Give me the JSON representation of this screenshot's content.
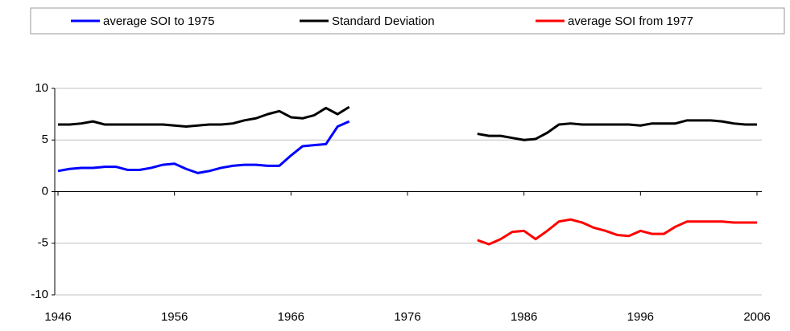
{
  "chart_data": {
    "type": "line",
    "x": [
      1946,
      1947,
      1948,
      1949,
      1950,
      1951,
      1952,
      1953,
      1954,
      1955,
      1956,
      1957,
      1958,
      1959,
      1960,
      1961,
      1962,
      1963,
      1964,
      1965,
      1966,
      1967,
      1968,
      1969,
      1970,
      1971,
      1972,
      1973,
      1974,
      1975,
      1976,
      1977,
      1978,
      1979,
      1980,
      1981,
      1982,
      1983,
      1984,
      1985,
      1986,
      1987,
      1988,
      1989,
      1990,
      1991,
      1992,
      1993,
      1994,
      1995,
      1996,
      1997,
      1998,
      1999,
      2000,
      2001,
      2002,
      2003,
      2004,
      2005,
      2006
    ],
    "series": [
      {
        "name": "average SOI to 1975",
        "color": "#0000ff",
        "values": [
          2.0,
          2.2,
          2.3,
          2.3,
          2.4,
          2.4,
          2.1,
          2.1,
          2.3,
          2.6,
          2.7,
          2.2,
          1.8,
          2.0,
          2.3,
          2.5,
          2.6,
          2.6,
          2.5,
          2.5,
          3.5,
          4.4,
          4.5,
          4.6,
          6.3,
          6.8,
          null,
          null,
          null,
          null,
          null,
          null,
          null,
          null,
          null,
          null,
          null,
          null,
          null,
          null,
          null,
          null,
          null,
          null,
          null,
          null,
          null,
          null,
          null,
          null,
          null,
          null,
          null,
          null,
          null,
          null,
          null,
          null,
          null,
          null,
          null
        ]
      },
      {
        "name": "Standard Deviation",
        "color": "#000000",
        "values": [
          6.5,
          6.5,
          6.6,
          6.8,
          6.5,
          6.5,
          6.5,
          6.5,
          6.5,
          6.5,
          6.4,
          6.3,
          6.4,
          6.5,
          6.5,
          6.6,
          6.9,
          7.1,
          7.5,
          7.8,
          7.2,
          7.1,
          7.4,
          8.1,
          7.5,
          8.2,
          null,
          null,
          null,
          null,
          null,
          null,
          null,
          null,
          null,
          null,
          5.6,
          5.4,
          5.4,
          5.2,
          5.0,
          5.1,
          5.7,
          6.5,
          6.6,
          6.5,
          6.5,
          6.5,
          6.5,
          6.5,
          6.4,
          6.6,
          6.6,
          6.6,
          6.9,
          6.9,
          6.9,
          6.8,
          6.6,
          6.5,
          6.5
        ]
      },
      {
        "name": "average SOI from 1977",
        "color": "#ff0000",
        "values": [
          null,
          null,
          null,
          null,
          null,
          null,
          null,
          null,
          null,
          null,
          null,
          null,
          null,
          null,
          null,
          null,
          null,
          null,
          null,
          null,
          null,
          null,
          null,
          null,
          null,
          null,
          null,
          null,
          null,
          null,
          null,
          null,
          null,
          null,
          null,
          null,
          -4.7,
          -5.1,
          -4.6,
          -3.9,
          -3.8,
          -4.6,
          -3.8,
          -2.9,
          -2.7,
          -3.0,
          -3.5,
          -3.8,
          -4.2,
          -4.3,
          -3.8,
          -4.1,
          -4.1,
          -3.4,
          -2.9,
          -2.9,
          -2.9,
          -2.9,
          -3.0,
          -3.0,
          -3.0
        ]
      }
    ],
    "xlim": [
      1946,
      2006
    ],
    "xticks": [
      1946,
      1956,
      1966,
      1976,
      1986,
      1996,
      2006
    ],
    "ylim": [
      -10,
      10
    ],
    "yticks": [
      -10,
      -5,
      0,
      5,
      10
    ],
    "grid": true,
    "legend": "top"
  }
}
